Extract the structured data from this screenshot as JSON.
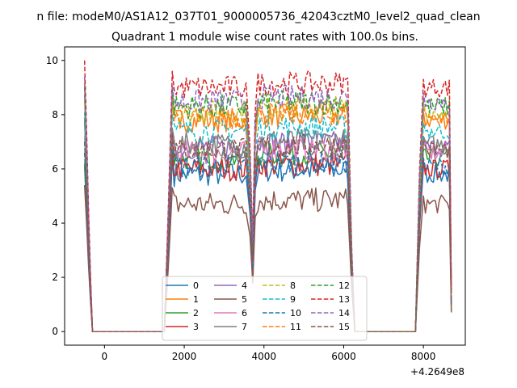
{
  "figure": {
    "suptitle": "n file: modeM0/AS1A12_037T01_9000005736_42043cztM0_level2_quad_clean",
    "offset_label": "+4.2649e8"
  },
  "chart_data": {
    "type": "line",
    "title": "Quadrant 1 module wise count rates with 100.0s bins.",
    "xlabel": "",
    "ylabel": "",
    "xlim": [
      -1000,
      9050
    ],
    "ylim": [
      -0.5,
      10.5
    ],
    "x_offset": 426490000,
    "xticks": [
      0,
      2000,
      4000,
      6000,
      8000
    ],
    "yticks": [
      0,
      2,
      4,
      6,
      8,
      10
    ],
    "grid": false,
    "legend_position": "lower-center",
    "legend_columns": 4,
    "segments": [
      {
        "x_start": -500,
        "x_end": -300,
        "shape": "decay"
      },
      {
        "x_start": -300,
        "x_end": 1500,
        "shape": "zero"
      },
      {
        "x_start": 1500,
        "x_end": 1700,
        "shape": "rise"
      },
      {
        "x_start": 1700,
        "x_end": 3600,
        "shape": "plateau"
      },
      {
        "x_start": 3600,
        "x_end": 3800,
        "shape": "dip"
      },
      {
        "x_start": 3800,
        "x_end": 6150,
        "shape": "plateau"
      },
      {
        "x_start": 6150,
        "x_end": 6300,
        "shape": "fall"
      },
      {
        "x_start": 6300,
        "x_end": 7800,
        "shape": "zero"
      },
      {
        "x_start": 7800,
        "x_end": 8000,
        "shape": "rise"
      },
      {
        "x_start": 8000,
        "x_end": 8700,
        "shape": "plateau"
      },
      {
        "x_start": 8700,
        "x_end": 8700,
        "shape": "end-drop"
      }
    ],
    "series": [
      {
        "name": "0",
        "color": "#1f77b4",
        "dash": "solid",
        "plateau": 5.8,
        "start": 6.1,
        "end": 1.1
      },
      {
        "name": "1",
        "color": "#ff7f0e",
        "dash": "solid",
        "plateau": 7.8,
        "start": 9.1,
        "end": 1.3
      },
      {
        "name": "2",
        "color": "#2ca02c",
        "dash": "solid",
        "plateau": 6.4,
        "start": 6.2,
        "end": 1.2
      },
      {
        "name": "3",
        "color": "#d62728",
        "dash": "solid",
        "plateau": 6.0,
        "start": 7.8,
        "end": 1.1
      },
      {
        "name": "4",
        "color": "#9467bd",
        "dash": "solid",
        "plateau": 6.8,
        "start": 8.7,
        "end": 1.2
      },
      {
        "name": "5",
        "color": "#8c564b",
        "dash": "solid",
        "plateau": 4.7,
        "start": 5.4,
        "end": 0.8
      },
      {
        "name": "6",
        "color": "#e377c2",
        "dash": "solid",
        "plateau": 6.6,
        "start": 7.2,
        "end": 1.2
      },
      {
        "name": "7",
        "color": "#7f7f7f",
        "dash": "solid",
        "plateau": 6.9,
        "start": 7.9,
        "end": 1.2
      },
      {
        "name": "8",
        "color": "#bcbd22",
        "dash": "dashed",
        "plateau": 8.1,
        "start": 8.6,
        "end": 1.4
      },
      {
        "name": "9",
        "color": "#17becf",
        "dash": "dashed",
        "plateau": 7.4,
        "start": 8.1,
        "end": 1.3
      },
      {
        "name": "10",
        "color": "#1f77b4",
        "dash": "dashed",
        "plateau": 6.1,
        "start": 6.6,
        "end": 1.0
      },
      {
        "name": "11",
        "color": "#ff7f0e",
        "dash": "dashed",
        "plateau": 7.9,
        "start": 9.2,
        "end": 1.3
      },
      {
        "name": "12",
        "color": "#2ca02c",
        "dash": "dashed",
        "plateau": 8.3,
        "start": 9.0,
        "end": 1.4
      },
      {
        "name": "13",
        "color": "#d62728",
        "dash": "dashed",
        "plateau": 9.0,
        "start": 10.0,
        "end": 1.5
      },
      {
        "name": "14",
        "color": "#9467bd",
        "dash": "dashed",
        "plateau": 8.5,
        "start": 9.4,
        "end": 1.4
      },
      {
        "name": "15",
        "color": "#8c564b",
        "dash": "dashed",
        "plateau": 6.7,
        "start": 7.0,
        "end": 0.7
      }
    ]
  }
}
